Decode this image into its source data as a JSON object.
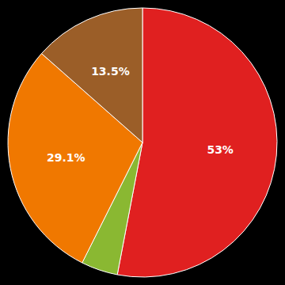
{
  "chart_data": {
    "type": "pie",
    "values": [
      53.0,
      4.4,
      29.1,
      13.5
    ],
    "value_labels": [
      "53%",
      null,
      "29.1%",
      "13.5%"
    ],
    "colors": [
      "#e02020",
      "#8ab832",
      "#f07800",
      "#9b5e28"
    ],
    "data_labels": true
  }
}
